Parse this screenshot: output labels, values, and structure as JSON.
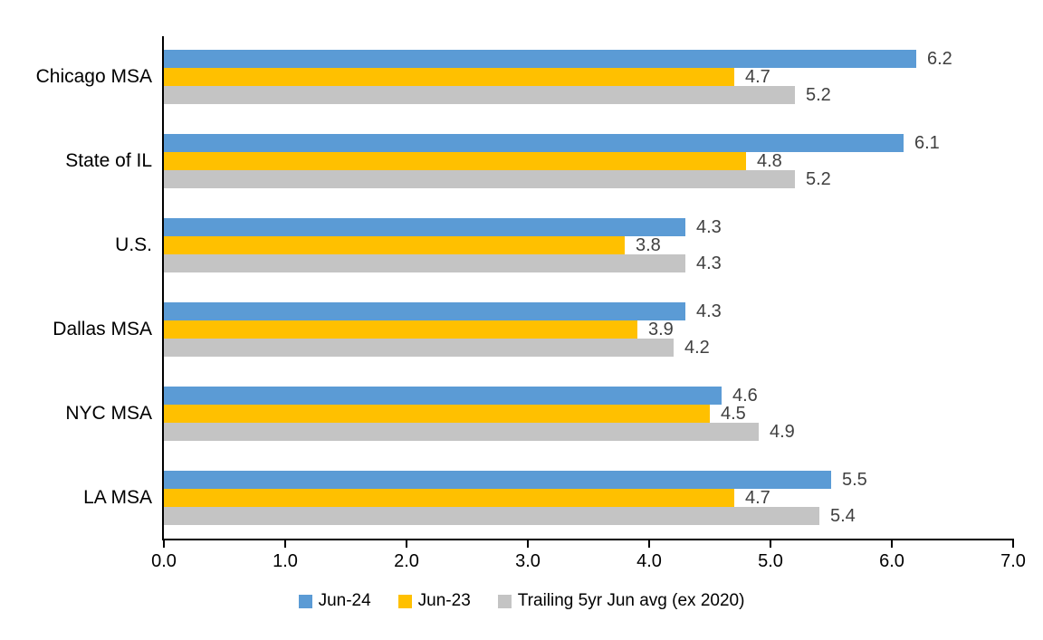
{
  "chart_data": {
    "type": "bar",
    "orientation": "horizontal",
    "title": "",
    "categories": [
      "Chicago MSA",
      "State of IL",
      "U.S.",
      "Dallas MSA",
      "NYC MSA",
      "LA MSA"
    ],
    "series": [
      {
        "name": "Jun-24",
        "color": "#5B9BD5",
        "values": [
          6.2,
          6.1,
          4.3,
          4.3,
          4.6,
          5.5
        ]
      },
      {
        "name": "Jun-23",
        "color": "#FFC000",
        "values": [
          4.7,
          4.8,
          3.8,
          3.9,
          4.5,
          4.7
        ]
      },
      {
        "name": "Trailing 5yr Jun avg (ex 2020)",
        "color": "#C4C4C4",
        "values": [
          5.2,
          5.2,
          4.3,
          4.2,
          4.9,
          5.4
        ]
      }
    ],
    "x_axis": {
      "min": 0,
      "max": 7,
      "tick_interval": 1,
      "tick_labels": [
        "0.0",
        "1.0",
        "2.0",
        "3.0",
        "4.0",
        "5.0",
        "6.0",
        "7.0"
      ]
    },
    "grid": false,
    "legend_position": "bottom",
    "data_labels_shown": true,
    "data_label_color": "#404040",
    "axis_color": "#000000",
    "background_color": "#FFFFFF"
  }
}
